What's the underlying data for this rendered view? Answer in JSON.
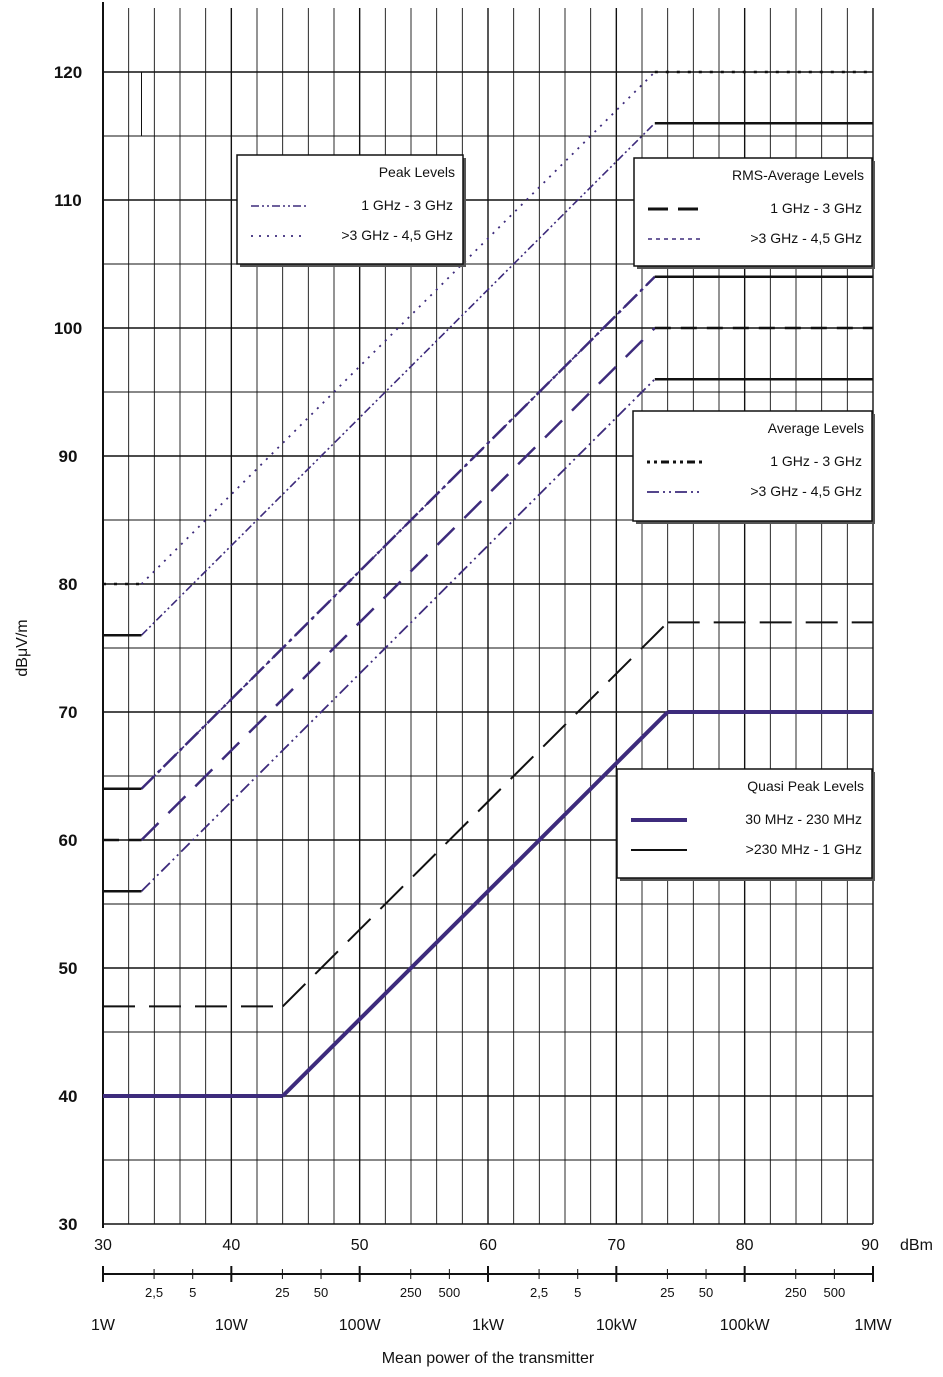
{
  "chart_data": {
    "type": "line",
    "xlabel": "Mean power of the transmitter",
    "ylabel": "dBμV/m",
    "xlim": [
      30,
      90
    ],
    "ylim": [
      30,
      120
    ],
    "x_unit_label": "dBm",
    "x_ticks": [
      30,
      40,
      50,
      60,
      70,
      80,
      90
    ],
    "y_ticks": [
      30,
      40,
      50,
      60,
      70,
      80,
      90,
      100,
      110,
      120
    ],
    "grid": true,
    "power_scale": {
      "major": [
        {
          "dbm": 30,
          "label": "1W"
        },
        {
          "dbm": 40,
          "label": "10W"
        },
        {
          "dbm": 50,
          "label": "100W"
        },
        {
          "dbm": 60,
          "label": "1kW"
        },
        {
          "dbm": 70,
          "label": "10kW"
        },
        {
          "dbm": 80,
          "label": "100kW"
        },
        {
          "dbm": 90,
          "label": "1MW"
        }
      ],
      "minor": [
        {
          "dbm": 33.98,
          "label": "2,5"
        },
        {
          "dbm": 36.99,
          "label": "5"
        },
        {
          "dbm": 43.98,
          "label": "25"
        },
        {
          "dbm": 46.99,
          "label": "50"
        },
        {
          "dbm": 53.98,
          "label": "250"
        },
        {
          "dbm": 56.99,
          "label": "500"
        },
        {
          "dbm": 63.98,
          "label": "2,5"
        },
        {
          "dbm": 66.99,
          "label": "5"
        },
        {
          "dbm": 73.98,
          "label": "25"
        },
        {
          "dbm": 76.99,
          "label": "50"
        },
        {
          "dbm": 83.98,
          "label": "250"
        },
        {
          "dbm": 86.99,
          "label": "500"
        }
      ]
    },
    "series": [
      {
        "name": "30 MHz - 230 MHz",
        "group": "Quasi Peak Levels",
        "x": [
          30,
          44,
          74,
          90
        ],
        "y": [
          40,
          40,
          70,
          70
        ]
      },
      {
        "name": ">230 MHz - 1 GHz",
        "group": "Quasi Peak Levels",
        "x": [
          30,
          44,
          74,
          90
        ],
        "y": [
          47,
          47,
          77,
          77
        ]
      },
      {
        "name": "1 GHz - 3 GHz",
        "group": "Average Levels",
        "x": [
          30,
          33,
          73,
          90
        ],
        "y": [
          64,
          64,
          104,
          104
        ]
      },
      {
        "name": ">3 GHz - 4,5 GHz",
        "group": "Average Levels",
        "x": [
          30,
          33,
          73,
          90
        ],
        "y": [
          56,
          56,
          96,
          96
        ]
      },
      {
        "name": "1 GHz - 3 GHz",
        "group": "RMS-Average Levels",
        "x": [
          30,
          33,
          73,
          90
        ],
        "y": [
          60,
          60,
          100,
          100
        ]
      },
      {
        "name": ">3 GHz - 4,5 GHz",
        "group": "RMS-Average Levels",
        "x": [
          30,
          33,
          73,
          90
        ],
        "y": [
          64,
          64,
          104,
          104
        ]
      },
      {
        "name": "1 GHz - 3 GHz",
        "group": "Peak Levels",
        "x": [
          30,
          33,
          73,
          90
        ],
        "y": [
          76,
          76,
          116,
          116
        ]
      },
      {
        "name": ">3 GHz - 4,5 GHz",
        "group": "Peak Levels",
        "x": [
          30,
          33,
          73,
          90
        ],
        "y": [
          80,
          80,
          120,
          120
        ]
      }
    ],
    "legends": [
      {
        "title": "Peak Levels",
        "items": [
          "1 GHz - 3 GHz",
          ">3 GHz - 4,5 GHz"
        ]
      },
      {
        "title": "RMS-Average Levels",
        "items": [
          "1 GHz - 3 GHz",
          ">3 GHz - 4,5 GHz"
        ]
      },
      {
        "title": "Average Levels",
        "items": [
          "1 GHz - 3 GHz",
          ">3 GHz - 4,5 GHz"
        ]
      },
      {
        "title": "Quasi Peak Levels",
        "items": [
          "30 MHz - 230 MHz",
          ">230 MHz - 1 GHz"
        ]
      }
    ],
    "colors": {
      "purple": "#3d2b7c",
      "black": "#111111"
    }
  }
}
